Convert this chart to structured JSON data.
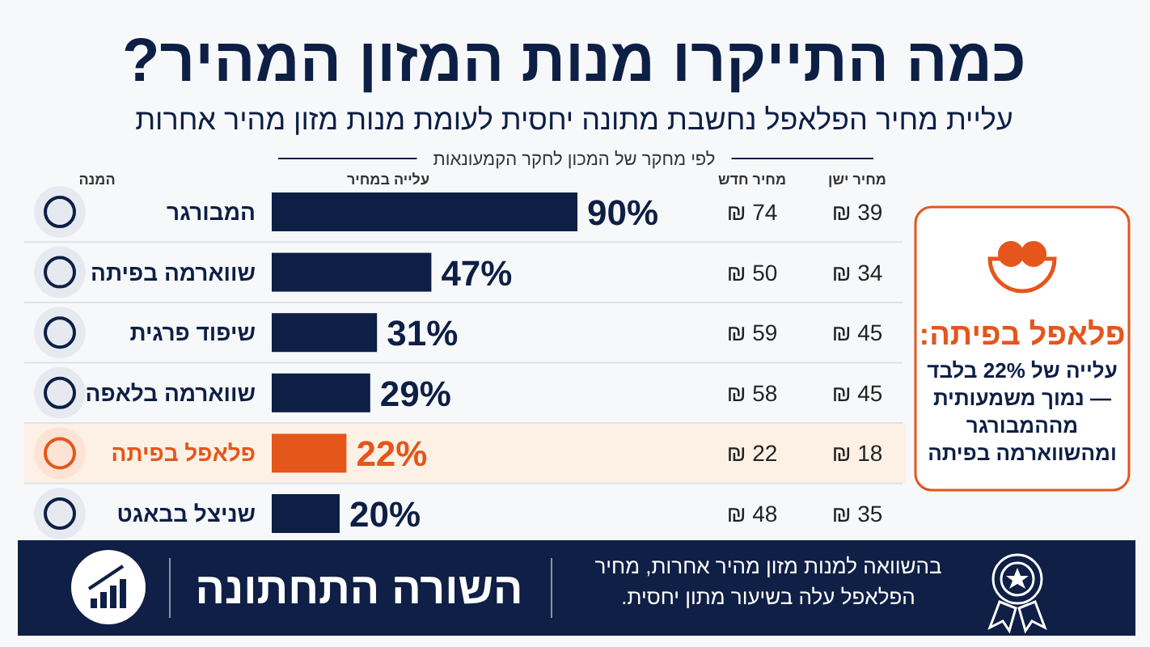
{
  "chart_data": {
    "type": "bar",
    "orientation": "horizontal",
    "title": "כמה התייקרו מנות המזון המהיר?",
    "subtitle": "עליית מחיר הפלאפל נחשבת מתונה יחסית לעומת מנות מזון מהיר אחרות",
    "ylabel": "המנה",
    "categories": [
      "המבורגר",
      "שווארמה בפיתה",
      "שיפוד פרגית",
      "שווארמה בלאפה",
      "פלאפל בפיתה",
      "שניצל בבאגט"
    ],
    "series": [
      {
        "name": "עלייה במחיר",
        "values": [
          90,
          47,
          31,
          29,
          22,
          20
        ],
        "colors": [
          "#0d1f45",
          "#0d1f45",
          "#0d1f45",
          "#0d1f45",
          "#e4561b",
          "#0d1f45"
        ],
        "value_labels": [
          "90%",
          "47%",
          "31%",
          "29%",
          "22%",
          "20%"
        ]
      }
    ],
    "bands": [
      {
        "axis": "y",
        "from": "פלאפל בפיתה",
        "to": "פלאפל בפיתה",
        "color": "#fdf0e4"
      }
    ],
    "annotations": [
      "לפי מחקר של המכון לחקר הקמעונאות",
      "פלאפל בפיתה:",
      "עלייה של 22% בלבד — נמוך משמעותית מההמבורגר ומהשווארמה בפיתה",
      "השורה התחתונה",
      "בהשוואה למנות מזון מהיר אחרות, מחיר הפלאפל עלה בשיעור מתון יחסית.",
      "מחיר חדש",
      "מחיר ישן",
      "74 ₪",
      "39 ₪",
      "50 ₪",
      "34 ₪",
      "59 ₪",
      "45 ₪",
      "58 ₪",
      "45 ₪",
      "22 ₪",
      "18 ₪",
      "48 ₪",
      "35 ₪"
    ]
  }
}
